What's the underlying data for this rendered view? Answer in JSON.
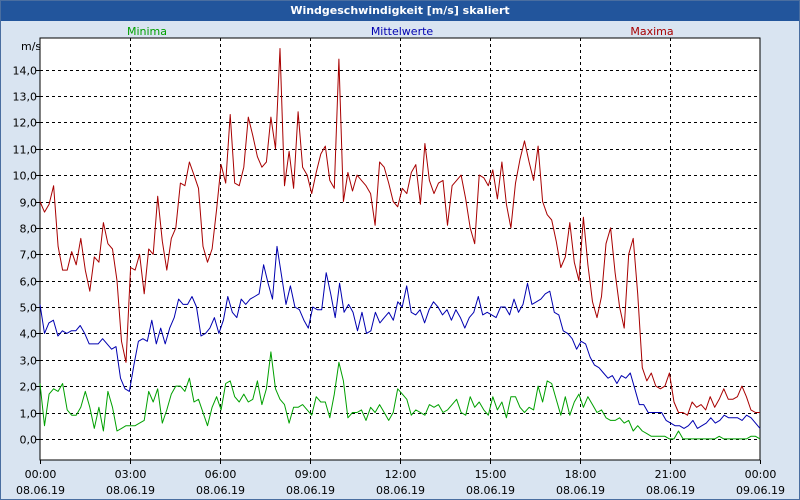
{
  "title": "Windgeschwindigkeit [m/s] skaliert",
  "legend": {
    "min": "Minima",
    "mean": "Mittelwerte",
    "max": "Maxima"
  },
  "chart_data": {
    "type": "line",
    "title": "Windgeschwindigkeit [m/s] skaliert",
    "ylabel": "m/s",
    "ylim": [
      -0.8,
      15.2
    ],
    "yticks": [
      "0,0",
      "1,0",
      "2,0",
      "3,0",
      "4,0",
      "5,0",
      "6,0",
      "7,0",
      "8,0",
      "9,0",
      "10,0",
      "11,0",
      "12,0",
      "13,0",
      "14,0"
    ],
    "ytick_values": [
      0,
      1,
      2,
      3,
      4,
      5,
      6,
      7,
      8,
      9,
      10,
      11,
      12,
      13,
      14
    ],
    "xlim": [
      0,
      24
    ],
    "xticks": [
      {
        "time": "00:00",
        "date": "08.06.19"
      },
      {
        "time": "03:00",
        "date": "08.06.19"
      },
      {
        "time": "06:00",
        "date": "08.06.19"
      },
      {
        "time": "09:00",
        "date": "08.06.19"
      },
      {
        "time": "12:00",
        "date": "08.06.19"
      },
      {
        "time": "15:00",
        "date": "08.06.19"
      },
      {
        "time": "18:00",
        "date": "08.06.19"
      },
      {
        "time": "21:00",
        "date": "08.06.19"
      },
      {
        "time": "00:00",
        "date": "09.06.19"
      }
    ],
    "x_step_hours": 0.1667,
    "series": [
      {
        "name": "Maxima",
        "color": "#a80000",
        "values": [
          9.0,
          8.6,
          8.9,
          9.6,
          7.3,
          6.4,
          6.4,
          7.1,
          6.6,
          7.6,
          6.4,
          5.6,
          6.9,
          6.7,
          8.2,
          7.4,
          7.2,
          6.0,
          3.7,
          2.9,
          6.5,
          6.4,
          7.0,
          5.5,
          7.2,
          7.0,
          9.2,
          7.5,
          6.4,
          7.6,
          8.0,
          9.7,
          9.6,
          10.5,
          10.0,
          9.5,
          7.3,
          6.7,
          7.2,
          8.7,
          10.4,
          9.7,
          12.3,
          9.7,
          9.6,
          10.3,
          12.2,
          11.5,
          10.7,
          10.3,
          10.5,
          12.2,
          11.0,
          14.8,
          9.6,
          10.9,
          9.5,
          12.4,
          10.3,
          10.0,
          9.3,
          10.1,
          10.8,
          11.1,
          9.8,
          9.5,
          14.4,
          9.0,
          10.1,
          9.4,
          10.0,
          9.8,
          9.6,
          9.3,
          8.1,
          10.5,
          10.3,
          9.7,
          9.0,
          8.8,
          9.5,
          9.3,
          10.1,
          10.4,
          8.9,
          11.2,
          9.8,
          9.3,
          9.7,
          9.8,
          8.1,
          9.6,
          9.8,
          10.0,
          9.1,
          8.0,
          7.4,
          10.0,
          9.9,
          9.6,
          10.2,
          9.1,
          10.5,
          8.9,
          8.0,
          9.7,
          10.6,
          11.3,
          10.5,
          9.8,
          11.1,
          9.0,
          8.5,
          8.3,
          7.5,
          6.5,
          6.9,
          8.2,
          6.7,
          6.0,
          8.4,
          6.6,
          5.2,
          4.6,
          5.4,
          7.4,
          8.0,
          6.3,
          5.0,
          4.2,
          7.0,
          7.6,
          5.5,
          2.7,
          2.2,
          2.5,
          2.0,
          1.9,
          2.0,
          2.5,
          1.4,
          1.0,
          1.0,
          0.9,
          1.4,
          1.2,
          1.3,
          1.1,
          1.6,
          1.2,
          1.5,
          1.9,
          1.5,
          1.5,
          1.6,
          2.0,
          1.6,
          1.1,
          1.0,
          1.0
        ]
      },
      {
        "name": "Mittelwerte",
        "color": "#0000b0",
        "values": [
          5.1,
          4.0,
          4.4,
          4.5,
          3.9,
          4.1,
          4.0,
          4.1,
          4.1,
          4.3,
          4.0,
          3.6,
          3.6,
          3.6,
          3.8,
          3.6,
          3.4,
          3.5,
          2.3,
          1.9,
          1.8,
          2.8,
          3.7,
          3.8,
          3.7,
          4.5,
          3.6,
          4.2,
          3.6,
          4.2,
          4.6,
          5.3,
          5.1,
          5.1,
          5.4,
          5.0,
          3.9,
          4.0,
          4.2,
          4.6,
          4.0,
          4.5,
          5.4,
          4.8,
          4.6,
          5.3,
          5.1,
          5.3,
          5.4,
          5.5,
          6.6,
          5.9,
          5.3,
          7.3,
          6.2,
          5.1,
          5.8,
          5.0,
          4.9,
          4.5,
          4.2,
          5.0,
          4.9,
          4.9,
          6.3,
          5.5,
          4.6,
          5.9,
          4.8,
          5.1,
          4.8,
          4.1,
          4.8,
          4.0,
          4.1,
          4.8,
          4.4,
          4.6,
          4.8,
          4.5,
          5.2,
          5.0,
          5.8,
          4.8,
          4.7,
          4.9,
          4.4,
          4.9,
          5.2,
          5.0,
          4.7,
          4.9,
          4.5,
          4.9,
          4.6,
          4.2,
          4.6,
          4.8,
          5.4,
          4.7,
          4.8,
          4.7,
          4.6,
          5.0,
          5.0,
          4.7,
          5.3,
          4.8,
          5.1,
          5.9,
          5.1,
          5.2,
          5.3,
          5.5,
          5.6,
          4.8,
          4.7,
          4.1,
          4.0,
          3.8,
          3.4,
          3.7,
          3.6,
          3.1,
          2.8,
          2.7,
          2.5,
          2.3,
          2.4,
          2.1,
          2.4,
          2.3,
          2.5,
          1.9,
          1.3,
          1.3,
          1.0,
          1.0,
          1.0,
          1.0,
          0.7,
          0.6,
          0.5,
          0.5,
          0.4,
          0.5,
          0.7,
          0.4,
          0.5,
          0.6,
          0.8,
          0.6,
          0.7,
          0.9,
          0.8,
          0.8,
          0.8,
          0.7,
          0.9,
          0.8,
          0.6,
          0.4
        ]
      },
      {
        "name": "Minima",
        "color": "#00a000",
        "values": [
          2.1,
          0.5,
          1.7,
          1.9,
          1.8,
          2.1,
          1.1,
          0.9,
          0.9,
          1.2,
          1.8,
          1.2,
          0.4,
          1.2,
          0.3,
          1.8,
          1.2,
          0.3,
          0.4,
          0.5,
          0.5,
          0.5,
          0.6,
          0.7,
          1.8,
          1.4,
          1.9,
          0.6,
          1.1,
          1.7,
          2.0,
          2.0,
          1.8,
          2.3,
          1.4,
          1.5,
          1.0,
          0.5,
          1.2,
          1.6,
          1.1,
          2.1,
          2.2,
          1.6,
          1.4,
          1.7,
          1.4,
          1.5,
          2.2,
          1.3,
          1.9,
          3.3,
          1.9,
          1.5,
          1.3,
          0.6,
          1.2,
          1.2,
          1.3,
          1.1,
          0.9,
          1.6,
          1.4,
          1.4,
          0.8,
          1.7,
          2.9,
          2.2,
          0.8,
          1.0,
          1.0,
          1.1,
          0.7,
          1.2,
          1.0,
          1.3,
          1.0,
          0.7,
          1.0,
          1.9,
          1.7,
          1.5,
          0.9,
          1.1,
          1.0,
          0.9,
          1.3,
          1.2,
          1.3,
          1.0,
          1.1,
          1.3,
          1.5,
          1.0,
          0.9,
          1.6,
          1.2,
          1.4,
          1.1,
          0.9,
          1.6,
          1.1,
          1.4,
          0.8,
          1.6,
          1.6,
          1.2,
          1.0,
          1.2,
          1.1,
          2.0,
          1.4,
          2.2,
          2.1,
          1.5,
          0.9,
          1.6,
          0.9,
          1.4,
          1.7,
          1.2,
          1.6,
          1.3,
          1.0,
          1.1,
          0.8,
          0.7,
          0.7,
          0.8,
          0.6,
          0.7,
          0.3,
          0.5,
          0.3,
          0.2,
          0.1,
          0.1,
          0.1,
          0.1,
          0.0,
          0.0,
          0.3,
          0.0,
          0.0,
          0.0,
          0.0,
          0.0,
          0.0,
          0.0,
          0.0,
          0.1,
          0.0,
          0.0,
          0.0,
          0.0,
          0.0,
          0.0,
          0.1,
          0.1,
          0.0
        ]
      }
    ]
  }
}
